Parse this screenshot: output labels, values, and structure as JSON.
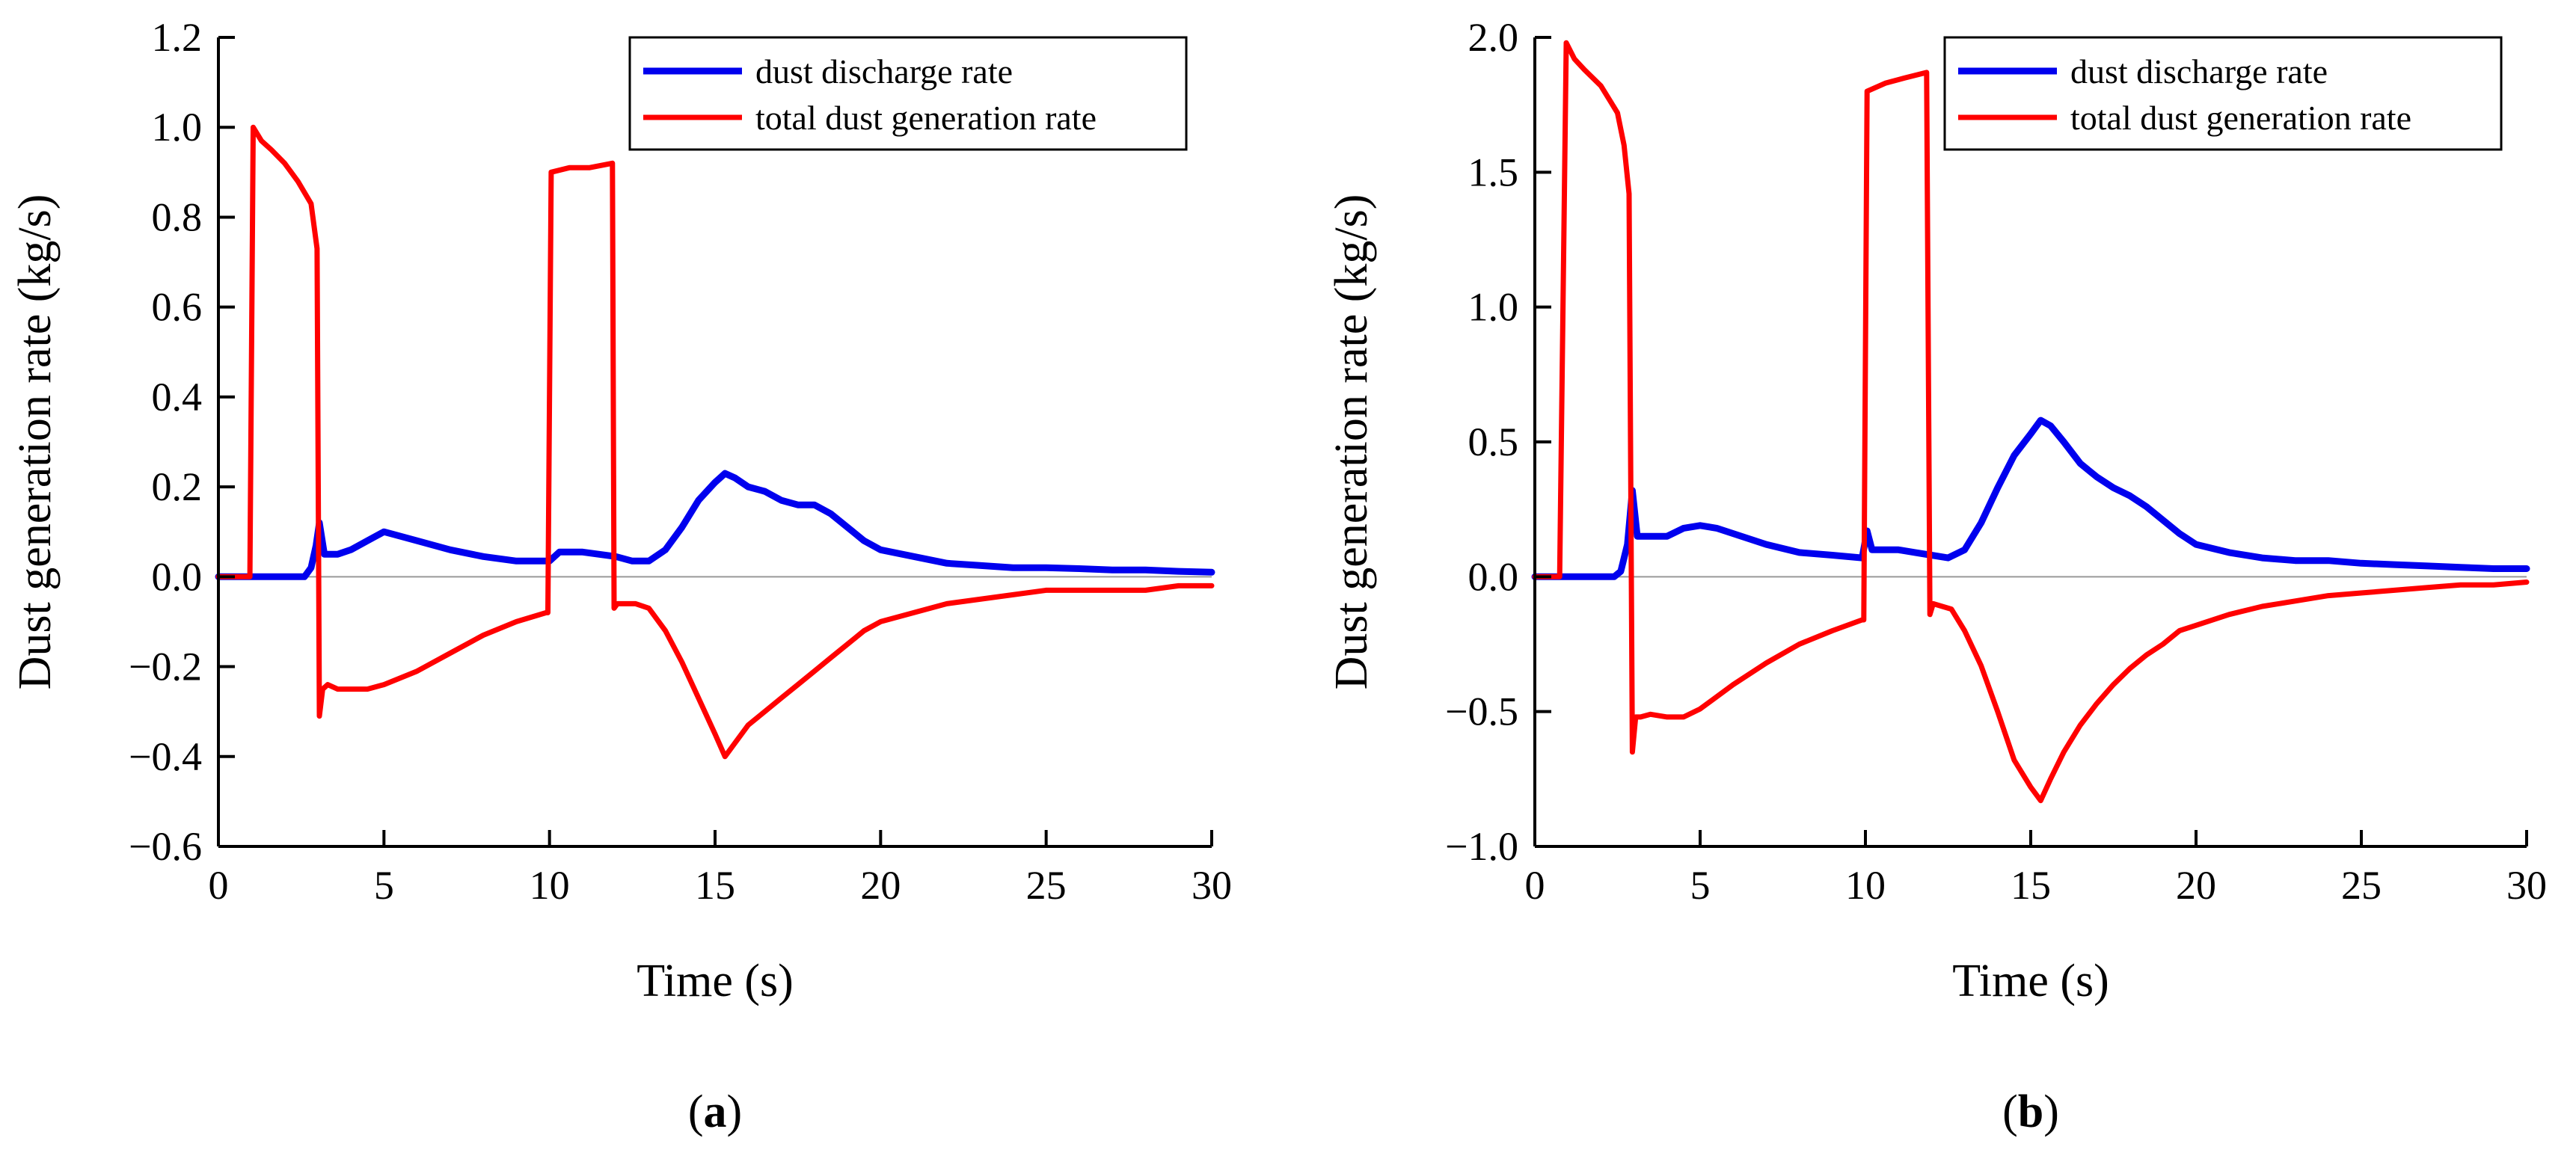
{
  "figure": {
    "panels": [
      "a",
      "b"
    ]
  },
  "chart_data": [
    {
      "type": "line",
      "panel_label": "a",
      "xlabel": "Time (s)",
      "ylabel": "Dust generation rate (kg/s)",
      "xlim": [
        0,
        30
      ],
      "ylim": [
        -0.6,
        1.2
      ],
      "xticks": [
        0,
        5,
        10,
        15,
        20,
        25,
        30
      ],
      "xtick_labels": [
        "0",
        "5",
        "10",
        "15",
        "20",
        "25",
        "30"
      ],
      "yticks": [
        -0.6,
        -0.4,
        -0.2,
        0.0,
        0.2,
        0.4,
        0.6,
        0.8,
        1.0,
        1.2
      ],
      "ytick_labels": [
        "−0.6",
        "−0.4",
        "−0.2",
        "0.0",
        "0.2",
        "0.4",
        "0.6",
        "0.8",
        "1.0",
        "1.2"
      ],
      "zero_line": true,
      "grid": false,
      "legend_position": "top-right",
      "series": [
        {
          "name": "dust discharge rate",
          "color": "#0000ee",
          "line_width": 9,
          "x": [
            0,
            2.6,
            2.8,
            2.95,
            3.05,
            3.2,
            3.6,
            4.0,
            4.5,
            5.0,
            5.5,
            6.0,
            7.0,
            8.0,
            9.0,
            10.0,
            10.3,
            11.0,
            11.5,
            12.0,
            12.5,
            13.0,
            13.5,
            14.0,
            14.5,
            15.0,
            15.3,
            15.6,
            16.0,
            16.5,
            17.0,
            17.5,
            18.0,
            18.5,
            19.0,
            19.5,
            20.0,
            21.0,
            22.0,
            23.0,
            24.0,
            25.0,
            26.0,
            27.0,
            28.0,
            29.0,
            30.0
          ],
          "y": [
            0,
            0,
            0.02,
            0.07,
            0.12,
            0.05,
            0.05,
            0.06,
            0.08,
            0.1,
            0.09,
            0.08,
            0.06,
            0.045,
            0.035,
            0.035,
            0.055,
            0.055,
            0.05,
            0.045,
            0.035,
            0.035,
            0.06,
            0.11,
            0.17,
            0.21,
            0.23,
            0.22,
            0.2,
            0.19,
            0.17,
            0.16,
            0.16,
            0.14,
            0.11,
            0.08,
            0.06,
            0.045,
            0.03,
            0.025,
            0.02,
            0.02,
            0.018,
            0.015,
            0.015,
            0.012,
            0.01
          ]
        },
        {
          "name": "total dust generation rate",
          "color": "#ff0000",
          "line_width": 7,
          "x": [
            0,
            0.95,
            1.05,
            1.3,
            1.6,
            2.0,
            2.4,
            2.8,
            2.98,
            3.05,
            3.15,
            3.3,
            3.6,
            4.0,
            4.5,
            5.0,
            6.0,
            7.0,
            8.0,
            9.0,
            9.9,
            9.95,
            10.05,
            10.6,
            11.2,
            11.9,
            11.95,
            12.05,
            12.6,
            13.0,
            13.5,
            14.0,
            14.5,
            15.0,
            15.3,
            15.6,
            16.0,
            16.5,
            17.0,
            17.5,
            18.0,
            18.5,
            19.0,
            19.5,
            20.0,
            21.0,
            22.0,
            23.0,
            24.0,
            25.0,
            26.0,
            27.0,
            28.0,
            29.0,
            30.0
          ],
          "y": [
            0,
            0,
            1.0,
            0.97,
            0.95,
            0.92,
            0.88,
            0.83,
            0.73,
            -0.31,
            -0.25,
            -0.24,
            -0.25,
            -0.25,
            -0.25,
            -0.24,
            -0.21,
            -0.17,
            -0.13,
            -0.1,
            -0.08,
            -0.08,
            0.9,
            0.91,
            0.91,
            0.92,
            -0.07,
            -0.06,
            -0.06,
            -0.07,
            -0.12,
            -0.19,
            -0.27,
            -0.35,
            -0.4,
            -0.37,
            -0.33,
            -0.3,
            -0.27,
            -0.24,
            -0.21,
            -0.18,
            -0.15,
            -0.12,
            -0.1,
            -0.08,
            -0.06,
            -0.05,
            -0.04,
            -0.03,
            -0.03,
            -0.03,
            -0.03,
            -0.02,
            -0.02
          ]
        }
      ]
    },
    {
      "type": "line",
      "panel_label": "b",
      "xlabel": "Time (s)",
      "ylabel": "Dust generation rate (kg/s)",
      "xlim": [
        0,
        30
      ],
      "ylim": [
        -1.0,
        2.0
      ],
      "xticks": [
        0,
        5,
        10,
        15,
        20,
        25,
        30
      ],
      "xtick_labels": [
        "0",
        "5",
        "10",
        "15",
        "20",
        "25",
        "30"
      ],
      "yticks": [
        -1.0,
        -0.5,
        0.0,
        0.5,
        1.0,
        1.5,
        2.0
      ],
      "ytick_labels": [
        "−1.0",
        "−0.5",
        "0.0",
        "0.5",
        "1.0",
        "1.5",
        "2.0"
      ],
      "zero_line": true,
      "grid": false,
      "legend_position": "top-right",
      "series": [
        {
          "name": "dust discharge rate",
          "color": "#0000ee",
          "line_width": 9,
          "x": [
            0,
            2.4,
            2.6,
            2.8,
            2.95,
            3.1,
            3.5,
            4.0,
            4.5,
            5.0,
            5.5,
            6.0,
            7.0,
            8.0,
            9.0,
            9.9,
            10.05,
            10.2,
            11.0,
            11.5,
            12.0,
            12.5,
            13.0,
            13.5,
            14.0,
            14.5,
            15.0,
            15.3,
            15.6,
            16.0,
            16.5,
            17.0,
            17.5,
            18.0,
            18.5,
            19.0,
            19.5,
            20.0,
            21.0,
            22.0,
            23.0,
            24.0,
            25.0,
            26.0,
            27.0,
            28.0,
            29.0,
            30.0
          ],
          "y": [
            0,
            0,
            0.02,
            0.12,
            0.32,
            0.15,
            0.15,
            0.15,
            0.18,
            0.19,
            0.18,
            0.16,
            0.12,
            0.09,
            0.08,
            0.07,
            0.17,
            0.1,
            0.1,
            0.09,
            0.08,
            0.07,
            0.1,
            0.2,
            0.33,
            0.45,
            0.53,
            0.58,
            0.56,
            0.5,
            0.42,
            0.37,
            0.33,
            0.3,
            0.26,
            0.21,
            0.16,
            0.12,
            0.09,
            0.07,
            0.06,
            0.06,
            0.05,
            0.045,
            0.04,
            0.035,
            0.03,
            0.03
          ]
        },
        {
          "name": "total dust generation rate",
          "color": "#ff0000",
          "line_width": 7,
          "x": [
            0,
            0.75,
            0.95,
            1.2,
            1.5,
            2.0,
            2.3,
            2.5,
            2.7,
            2.85,
            2.95,
            3.05,
            3.2,
            3.5,
            4.0,
            4.5,
            5.0,
            6.0,
            7.0,
            8.0,
            9.0,
            9.9,
            9.95,
            10.05,
            10.6,
            11.2,
            11.85,
            11.95,
            12.05,
            12.6,
            13.0,
            13.5,
            14.0,
            14.5,
            15.0,
            15.3,
            15.6,
            16.0,
            16.5,
            17.0,
            17.5,
            18.0,
            18.5,
            19.0,
            19.5,
            20.0,
            21.0,
            22.0,
            23.0,
            24.0,
            25.0,
            26.0,
            27.0,
            28.0,
            29.0,
            30.0
          ],
          "y": [
            0,
            0,
            1.98,
            1.92,
            1.88,
            1.82,
            1.76,
            1.72,
            1.6,
            1.42,
            -0.65,
            -0.52,
            -0.52,
            -0.51,
            -0.52,
            -0.52,
            -0.49,
            -0.4,
            -0.32,
            -0.25,
            -0.2,
            -0.16,
            -0.16,
            1.8,
            1.83,
            1.85,
            1.87,
            -0.14,
            -0.1,
            -0.12,
            -0.2,
            -0.33,
            -0.5,
            -0.68,
            -0.78,
            -0.83,
            -0.75,
            -0.65,
            -0.55,
            -0.47,
            -0.4,
            -0.34,
            -0.29,
            -0.25,
            -0.2,
            -0.18,
            -0.14,
            -0.11,
            -0.09,
            -0.07,
            -0.06,
            -0.05,
            -0.04,
            -0.03,
            -0.03,
            -0.02
          ]
        }
      ]
    }
  ]
}
